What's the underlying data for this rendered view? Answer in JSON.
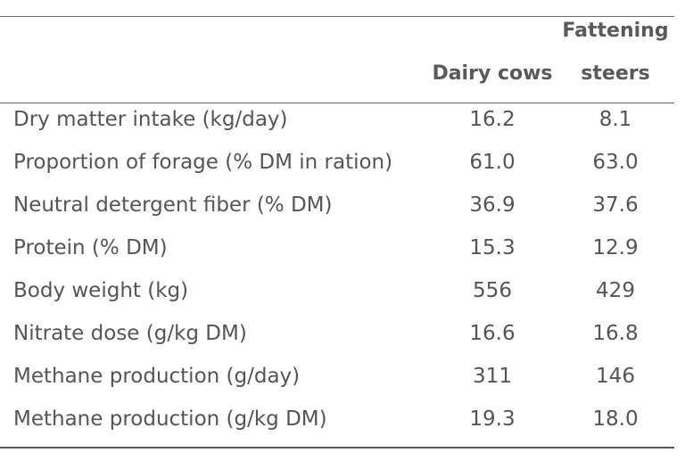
{
  "table": {
    "headers": {
      "col1": "Dairy cows",
      "col2_line1": "Fattening",
      "col2_line2": "steers"
    },
    "rows": [
      {
        "label": "Dry matter intake (kg/day)",
        "dairy": "16.2",
        "steers": "8.1"
      },
      {
        "label": "Proportion of forage (% DM in ration)",
        "dairy": "61.0",
        "steers": "63.0"
      },
      {
        "label": "Neutral detergent fiber (% DM)",
        "dairy": "36.9",
        "steers": "37.6"
      },
      {
        "label": "Protein (% DM)",
        "dairy": "15.3",
        "steers": "12.9"
      },
      {
        "label": "Body weight (kg)",
        "dairy": "556",
        "steers": "429"
      },
      {
        "label": "Nitrate dose (g/kg DM)",
        "dairy": "16.6",
        "steers": "16.8"
      },
      {
        "label": "Methane production (g/day)",
        "dairy": "311",
        "steers": "146"
      },
      {
        "label": "Methane production (g/kg DM)",
        "dairy": "19.3",
        "steers": "18.0"
      }
    ]
  }
}
